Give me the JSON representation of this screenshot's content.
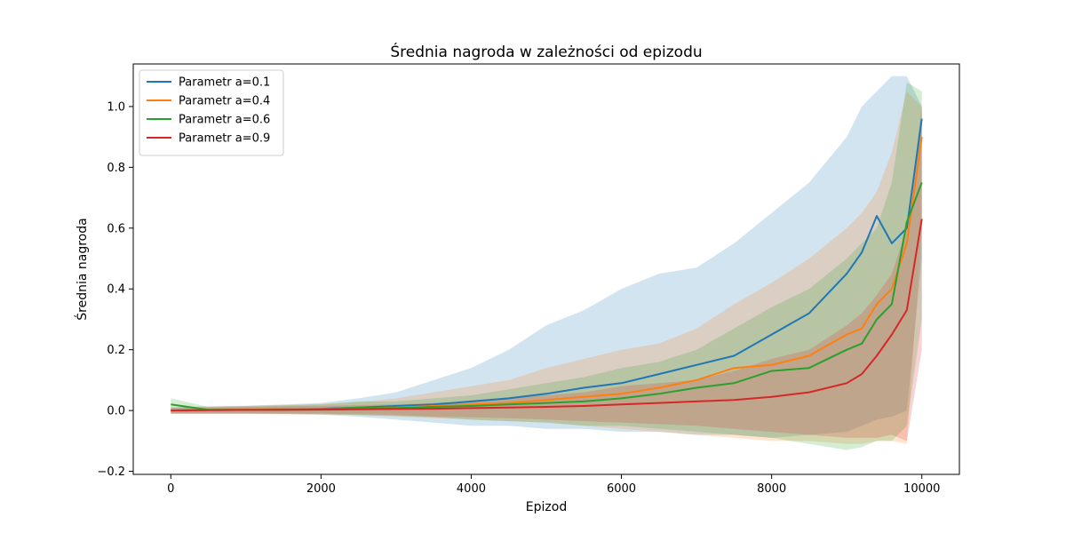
{
  "chart_data": {
    "type": "line",
    "title": "Średnia nagroda w zależności od epizodu",
    "xlabel": "Epizod",
    "ylabel": "Średnia nagroda",
    "xlim": [
      -500,
      10500
    ],
    "ylim": [
      -0.21,
      1.14
    ],
    "xticks": [
      0,
      2000,
      4000,
      6000,
      8000,
      10000
    ],
    "xtick_labels": [
      "0",
      "2000",
      "4000",
      "6000",
      "8000",
      "10000"
    ],
    "yticks": [
      -0.2,
      0.0,
      0.2,
      0.4,
      0.6,
      0.8,
      1.0
    ],
    "ytick_labels": [
      "−0.2",
      "0.0",
      "0.2",
      "0.4",
      "0.6",
      "0.8",
      "1.0"
    ],
    "grid": false,
    "legend_position": "top-left",
    "x": [
      0,
      500,
      1000,
      1500,
      2000,
      2500,
      3000,
      3500,
      4000,
      4500,
      5000,
      5500,
      6000,
      6500,
      7000,
      7500,
      8000,
      8500,
      9000,
      9200,
      9400,
      9600,
      9800,
      10000
    ],
    "series": [
      {
        "name": "Parametr a=0.1",
        "color": "#1f77b4",
        "values": [
          0.0,
          0.002,
          0.003,
          0.004,
          0.006,
          0.01,
          0.015,
          0.02,
          0.03,
          0.04,
          0.055,
          0.075,
          0.09,
          0.12,
          0.15,
          0.18,
          0.25,
          0.32,
          0.45,
          0.52,
          0.64,
          0.55,
          0.6,
          0.96
        ],
        "lower": [
          -0.01,
          -0.01,
          -0.01,
          -0.012,
          -0.014,
          -0.02,
          -0.03,
          -0.04,
          -0.05,
          -0.05,
          -0.06,
          -0.06,
          -0.07,
          -0.07,
          -0.08,
          -0.08,
          -0.09,
          -0.08,
          -0.07,
          -0.05,
          -0.03,
          -0.02,
          0.0,
          0.5
        ],
        "upper": [
          0.01,
          0.014,
          0.016,
          0.02,
          0.025,
          0.04,
          0.06,
          0.1,
          0.14,
          0.2,
          0.28,
          0.33,
          0.4,
          0.45,
          0.47,
          0.55,
          0.65,
          0.75,
          0.9,
          1.0,
          1.05,
          1.1,
          1.1,
          1.0
        ]
      },
      {
        "name": "Parametr a=0.4",
        "color": "#ff7f0e",
        "values": [
          0.0,
          0.002,
          0.003,
          0.004,
          0.005,
          0.008,
          0.01,
          0.015,
          0.02,
          0.025,
          0.035,
          0.045,
          0.055,
          0.075,
          0.1,
          0.14,
          0.15,
          0.18,
          0.25,
          0.27,
          0.35,
          0.4,
          0.55,
          0.9
        ],
        "lower": [
          -0.01,
          -0.01,
          -0.01,
          -0.012,
          -0.013,
          -0.015,
          -0.02,
          -0.025,
          -0.03,
          -0.035,
          -0.04,
          -0.05,
          -0.06,
          -0.07,
          -0.08,
          -0.09,
          -0.1,
          -0.1,
          -0.11,
          -0.11,
          -0.1,
          -0.1,
          -0.11,
          0.6
        ],
        "upper": [
          0.01,
          0.012,
          0.015,
          0.018,
          0.022,
          0.028,
          0.04,
          0.06,
          0.08,
          0.1,
          0.14,
          0.17,
          0.2,
          0.22,
          0.27,
          0.35,
          0.42,
          0.5,
          0.6,
          0.65,
          0.72,
          0.85,
          1.05,
          1.0
        ]
      },
      {
        "name": "Parametr a=0.6",
        "color": "#2ca02c",
        "values": [
          0.02,
          0.002,
          0.002,
          0.003,
          0.004,
          0.01,
          0.008,
          0.012,
          0.015,
          0.02,
          0.025,
          0.03,
          0.04,
          0.055,
          0.075,
          0.09,
          0.13,
          0.14,
          0.2,
          0.22,
          0.3,
          0.35,
          0.62,
          0.75
        ],
        "lower": [
          -0.01,
          -0.01,
          -0.01,
          -0.01,
          -0.012,
          -0.015,
          -0.018,
          -0.022,
          -0.03,
          -0.035,
          -0.04,
          -0.05,
          -0.05,
          -0.06,
          -0.07,
          -0.08,
          -0.09,
          -0.11,
          -0.13,
          -0.12,
          -0.1,
          -0.1,
          -0.05,
          0.3
        ],
        "upper": [
          0.04,
          0.012,
          0.015,
          0.017,
          0.02,
          0.03,
          0.03,
          0.04,
          0.05,
          0.07,
          0.09,
          0.11,
          0.14,
          0.16,
          0.2,
          0.27,
          0.34,
          0.4,
          0.5,
          0.55,
          0.6,
          0.75,
          1.08,
          1.05
        ]
      },
      {
        "name": "Parametr a=0.9",
        "color": "#d62728",
        "values": [
          0.0,
          0.001,
          0.002,
          0.002,
          0.003,
          0.004,
          0.005,
          0.006,
          0.008,
          0.01,
          0.012,
          0.015,
          0.02,
          0.025,
          0.03,
          0.035,
          0.045,
          0.06,
          0.09,
          0.12,
          0.18,
          0.25,
          0.33,
          0.63
        ],
        "lower": [
          -0.01,
          -0.01,
          -0.01,
          -0.01,
          -0.01,
          -0.012,
          -0.015,
          -0.02,
          -0.022,
          -0.025,
          -0.03,
          -0.035,
          -0.04,
          -0.045,
          -0.05,
          -0.06,
          -0.07,
          -0.08,
          -0.09,
          -0.09,
          -0.09,
          -0.08,
          -0.1,
          0.2
        ],
        "upper": [
          0.01,
          0.01,
          0.012,
          0.014,
          0.016,
          0.018,
          0.02,
          0.025,
          0.03,
          0.04,
          0.05,
          0.06,
          0.08,
          0.09,
          0.1,
          0.13,
          0.17,
          0.2,
          0.28,
          0.32,
          0.38,
          0.45,
          0.6,
          1.0
        ]
      }
    ]
  }
}
